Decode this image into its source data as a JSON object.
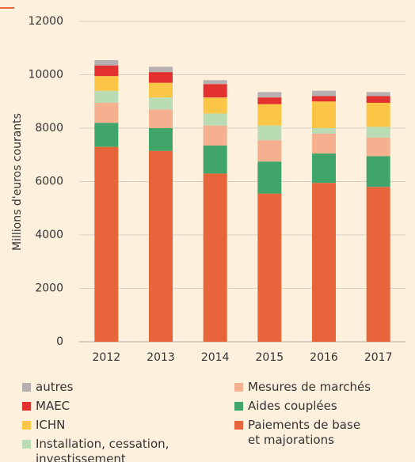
{
  "chart_data": {
    "type": "stacked_bar",
    "y_label": "Millions d'euros courants",
    "categories": [
      "2012",
      "2013",
      "2014",
      "2015",
      "2016",
      "2017"
    ],
    "series": [
      {
        "name": "Paiements de base et majorations",
        "color": "#e8643a",
        "values": [
          7300,
          7150,
          6300,
          5550,
          5950,
          5800
        ]
      },
      {
        "name": "Aides couplées",
        "color": "#3fa56b",
        "values": [
          900,
          850,
          1050,
          1200,
          1100,
          1150
        ]
      },
      {
        "name": "Mesures de marchés",
        "color": "#f4b08f",
        "values": [
          750,
          700,
          750,
          800,
          750,
          700
        ]
      },
      {
        "name": "Installation, cessation, investissement",
        "color": "#b9dcb4",
        "values": [
          450,
          450,
          450,
          550,
          200,
          400
        ]
      },
      {
        "name": "ICHN",
        "color": "#fbc545",
        "values": [
          550,
          550,
          600,
          800,
          1000,
          900
        ]
      },
      {
        "name": "MAEC",
        "color": "#e2312f",
        "values": [
          400,
          400,
          500,
          250,
          200,
          250
        ]
      },
      {
        "name": "autres",
        "color": "#b8b0b0",
        "values": [
          200,
          200,
          150,
          200,
          200,
          150
        ]
      }
    ],
    "ylim": [
      0,
      12000
    ],
    "yticks": [
      0,
      2000,
      4000,
      6000,
      8000,
      10000,
      12000
    ],
    "grid": true
  }
}
